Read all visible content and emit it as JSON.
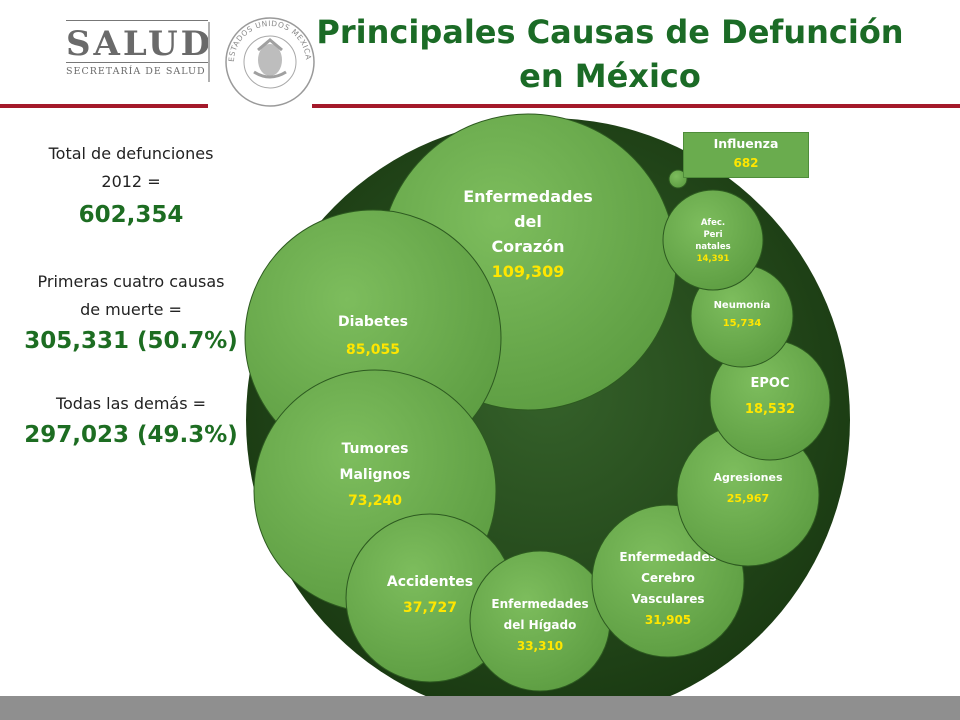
{
  "header": {
    "logo_word": "SALUD",
    "logo_sub": "SECRETARÍA DE SALUD",
    "seal_text": "ESTADOS UNIDOS MEXICANOS",
    "title_line1": "Principales Causas de Defunción",
    "title_line2": "en México"
  },
  "stats": {
    "total_label_1": "Total de defunciones",
    "total_label_2": "2012 =",
    "total_value": "602,354",
    "first4_label_1": "Primeras cuatro causas",
    "first4_label_2": "de muerte =",
    "first4_value": "305,331 (50.7%)",
    "others_label": "Todas las demás =",
    "others_value": "297,023 (49.3%)"
  },
  "colors": {
    "title": "#1b6b26",
    "accent_red": "#a4192a",
    "bubble": "#6aac4e",
    "bubble_dark": "#1f4a14",
    "value_yellow": "#ffe600",
    "stat_value": "#1d6d22"
  },
  "chart_data": {
    "type": "bubble",
    "title": "Principales Causas de Defunción en México",
    "total": 602354,
    "series": [
      {
        "name": "Enfermedades del Corazón",
        "label_lines": [
          "Enfermedades",
          "del",
          "Corazón"
        ],
        "value_label": "109,309",
        "value": 109309
      },
      {
        "name": "Diabetes",
        "label_lines": [
          "Diabetes"
        ],
        "value_label": "85,055",
        "value": 85055
      },
      {
        "name": "Tumores Malignos",
        "label_lines": [
          "Tumores",
          "Malignos"
        ],
        "value_label": "73,240",
        "value": 73240
      },
      {
        "name": "Accidentes",
        "label_lines": [
          "Accidentes"
        ],
        "value_label": "37,727",
        "value": 37727
      },
      {
        "name": "Enfermedades del Hígado",
        "label_lines": [
          "Enfermedades",
          "del Hígado"
        ],
        "value_label": "33,310",
        "value": 33310
      },
      {
        "name": "Enfermedades Cerebro Vasculares",
        "label_lines": [
          "Enfermedades",
          "Cerebro",
          "Vasculares"
        ],
        "value_label": "31,905",
        "value": 31905
      },
      {
        "name": "Agresiones",
        "label_lines": [
          "Agresiones"
        ],
        "value_label": "25,967",
        "value": 25967
      },
      {
        "name": "EPOC",
        "label_lines": [
          "EPOC"
        ],
        "value_label": "18,532",
        "value": 18532
      },
      {
        "name": "Neumonía",
        "label_lines": [
          "Neumonía"
        ],
        "value_label": "15,734",
        "value": 15734
      },
      {
        "name": "Afec. Peri natales",
        "label_lines": [
          "Afec.",
          "Peri",
          "natales"
        ],
        "value_label": "14,391",
        "value": 14391
      },
      {
        "name": "Influenza",
        "label_lines": [
          "Influenza"
        ],
        "value_label": "682",
        "value": 682
      }
    ]
  }
}
